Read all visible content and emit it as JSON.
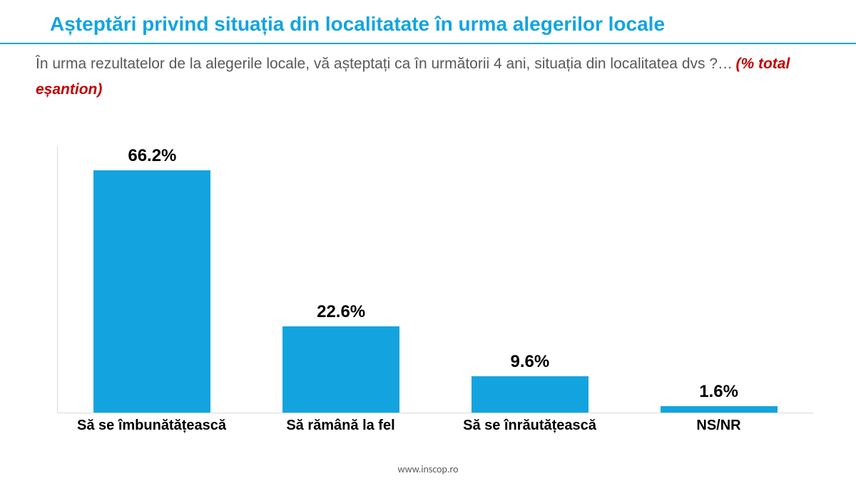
{
  "title": {
    "text": "Așteptări privind situația din localitatate în urma alegerilor locale",
    "color": "#13a4df",
    "fontsize": 28
  },
  "rule_color": "#13a4df",
  "question": {
    "text": "În urma rezultatelor de la alegerile locale, vă așteptați ca în următorii 4 ani, situația din localitatea dvs ?…",
    "color": "#595959",
    "fontsize": 21,
    "note_text": "(% total eșantion)",
    "note_color": "#c00000",
    "note_fontsize": 21
  },
  "chart": {
    "type": "bar",
    "ylim_max": 70,
    "axis_color": "#d9d9d9",
    "bar_color": "#13a4df",
    "value_color": "#000000",
    "value_fontsize": 24,
    "label_color": "#000000",
    "label_fontsize": 20,
    "categories": [
      "Să se îmbunătățească",
      "Să rămână la fel",
      "Să se înrăutățească",
      "NS/NR"
    ],
    "values": [
      66.2,
      22.6,
      9.6,
      1.6
    ],
    "value_labels": [
      "66.2%",
      "22.6%",
      "9.6%",
      "1.6%"
    ]
  },
  "footer": {
    "text": "www.inscop.ro",
    "fontsize": 14
  }
}
